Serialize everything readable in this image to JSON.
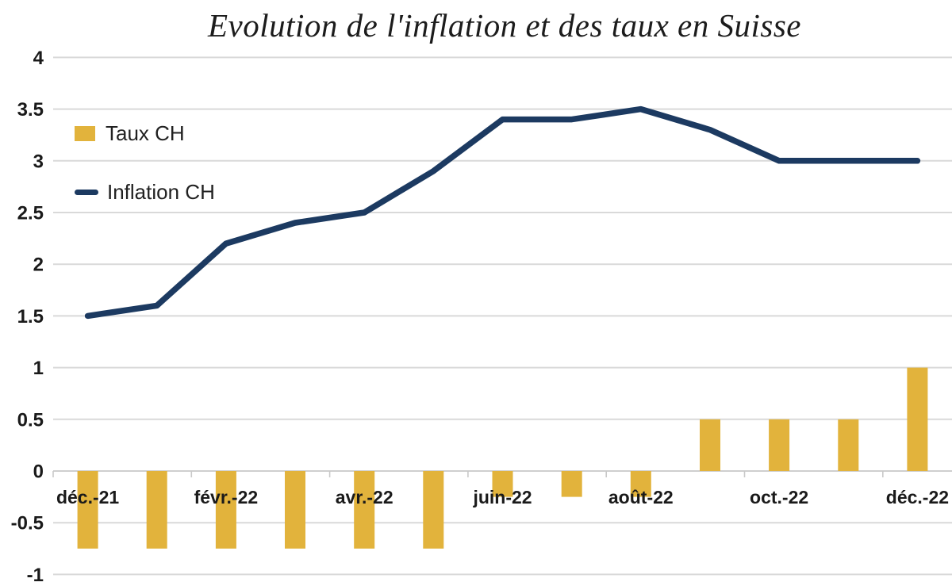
{
  "title": "Evolution de l'inflation et des taux en Suisse",
  "legend": [
    {
      "label": "Taux CH",
      "swatch": "bar-swatch",
      "color": "#E2B33C"
    },
    {
      "label": "Inflation CH",
      "swatch": "line-swatch",
      "color": "#1C3A61"
    }
  ],
  "chart_data": {
    "type": "combo",
    "n_points": 13,
    "x_tick_labels": [
      "déc.-21",
      "févr.-22",
      "avr.-22",
      "juin-22",
      "août-22",
      "oct.-22",
      "déc.-22"
    ],
    "x_tick_indices": [
      0,
      2,
      4,
      6,
      8,
      10,
      12
    ],
    "y_tick_labels": [
      "4",
      "3.5",
      "3",
      "2.5",
      "2",
      "1.5",
      "1",
      "0.5",
      "0",
      "-0.5",
      "-1"
    ],
    "y_tick_values": [
      4,
      3.5,
      3,
      2.5,
      2,
      1.5,
      1,
      0.5,
      0,
      -0.5,
      -1
    ],
    "ylim": [
      -1,
      4
    ],
    "ytick_step": 0.5,
    "grid": true,
    "legend_position": "upper-left",
    "title": "Evolution de l'inflation et des taux en Suisse",
    "xlabel": "",
    "ylabel": "",
    "series": [
      {
        "name": "Taux CH",
        "type": "bar",
        "color": "#E2B33C",
        "values": [
          -0.75,
          -0.75,
          -0.75,
          -0.75,
          -0.75,
          -0.75,
          -0.25,
          -0.25,
          -0.25,
          0.5,
          0.5,
          0.5,
          1.0
        ]
      },
      {
        "name": "Inflation CH",
        "type": "line",
        "color": "#1C3A61",
        "values": [
          1.5,
          1.6,
          2.2,
          2.4,
          2.5,
          2.9,
          3.4,
          3.4,
          3.5,
          3.3,
          3.0,
          3.0,
          3.0
        ]
      }
    ],
    "colors": {
      "gridline": "#D9D9D9",
      "zero_axis": "#CFCFCF",
      "tick_mark": "#C9C9C9",
      "axis_text": "#1A1A1A"
    }
  }
}
